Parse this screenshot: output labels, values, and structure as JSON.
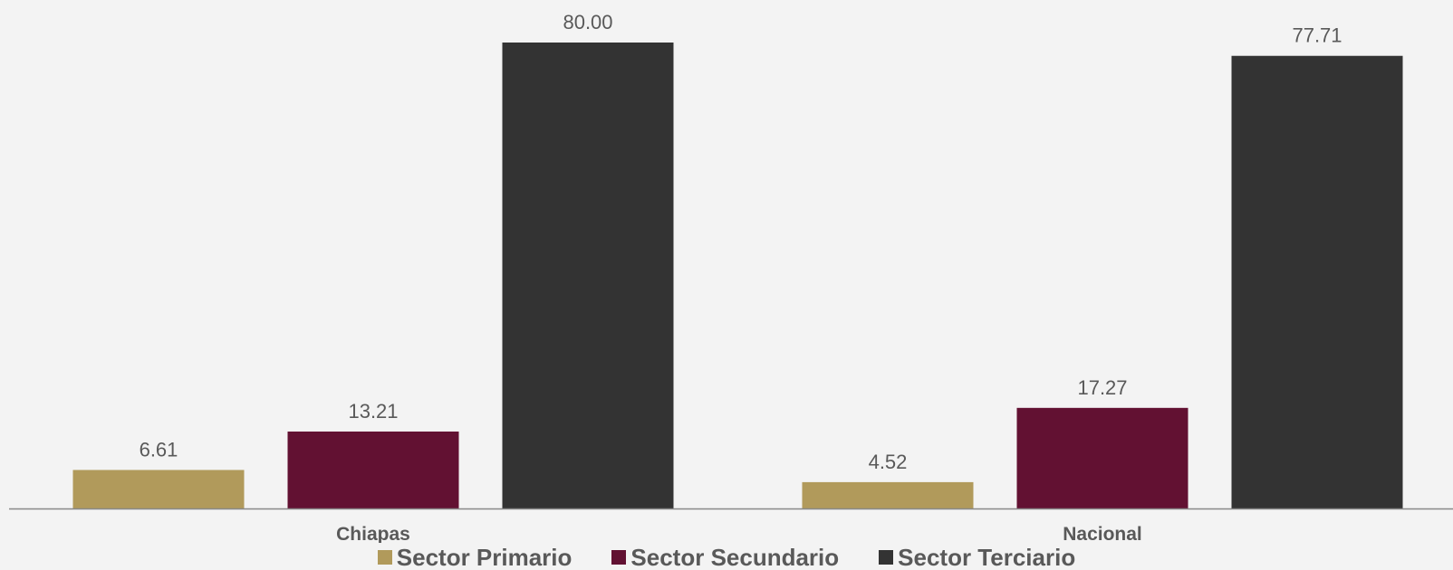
{
  "chart_data": {
    "type": "bar",
    "categories": [
      "Chiapas",
      "Nacional"
    ],
    "series": [
      {
        "name": "Sector Primario",
        "values": [
          6.61,
          4.52
        ],
        "labels": [
          "6.61",
          "4.52"
        ],
        "color": "#b19a5b"
      },
      {
        "name": "Sector Secundario",
        "values": [
          13.21,
          17.27
        ],
        "labels": [
          "13.21",
          "17.27"
        ],
        "color": "#621132"
      },
      {
        "name": "Sector Terciario",
        "values": [
          80.0,
          77.71
        ],
        "labels": [
          "80.00",
          "77.71"
        ],
        "color": "#333333"
      }
    ],
    "ylim": [
      0,
      80
    ],
    "grid": false,
    "legend": "bottom",
    "axis_color": "#898989"
  }
}
